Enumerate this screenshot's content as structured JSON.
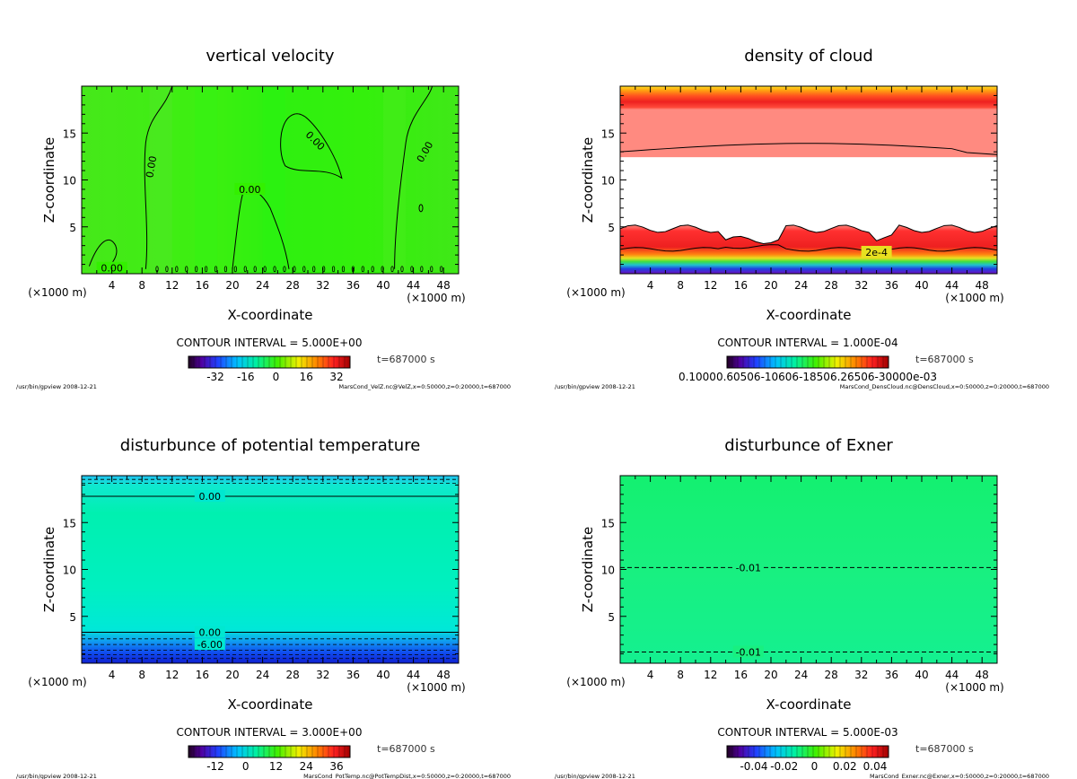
{
  "chart_data": [
    {
      "type": "heatmap",
      "id": "velz",
      "title": "vertical velocity",
      "xlabel": "X-coordinate",
      "ylabel": "Z-coordinate",
      "x_unit": "(×1000 m)",
      "xlim": [
        0,
        50
      ],
      "ylim": [
        0,
        20
      ],
      "x_ticks": [
        "4",
        "8",
        "12",
        "16",
        "20",
        "24",
        "28",
        "32",
        "36",
        "40",
        "44",
        "48"
      ],
      "y_ticks": [
        "5",
        "10",
        "15"
      ],
      "contour_interval": "CONTOUR INTERVAL = 5.000E+00",
      "time": "t=687000 s",
      "colorbar_ticks": [
        "-32",
        "-16",
        "0",
        "16",
        "32"
      ],
      "contour_labels": [
        "0.00",
        "0.00",
        "0.00",
        "0.00",
        "0.00"
      ],
      "footer_left": "/usr/bin/gpview  2008-12-21",
      "footer_right": "MarsCond_VelZ.nc@VelZ,x=0:50000,z=0:20000,t=687000",
      "colors": {
        "field": "#33f000"
      }
    },
    {
      "type": "heatmap",
      "id": "denscloud",
      "title": "density of cloud",
      "xlabel": "X-coordinate",
      "ylabel": "Z-coordinate",
      "x_unit": "(×1000 m)",
      "xlim": [
        0,
        50
      ],
      "ylim": [
        0,
        20
      ],
      "x_ticks": [
        "4",
        "8",
        "12",
        "16",
        "20",
        "24",
        "28",
        "32",
        "36",
        "40",
        "44",
        "48"
      ],
      "y_ticks": [
        "5",
        "10",
        "15"
      ],
      "contour_interval": "CONTOUR INTERVAL = 1.000E-04",
      "time": "t=687000 s",
      "colorbar_ticks": [
        "0.10000.60506-10606-18506.26506-30000e-03"
      ],
      "contour_labels": [
        "2e-4"
      ],
      "footer_left": "/usr/bin/gpview  2008-12-21",
      "footer_right": "MarsCond_DensCloud.nc@DensCloud,x=0:50000,z=0:20000,t=687000",
      "colors": {
        "field": "#ff3030"
      }
    },
    {
      "type": "heatmap",
      "id": "pottempdist",
      "title": "disturbunce of potential temperature",
      "xlabel": "X-coordinate",
      "ylabel": "Z-coordinate",
      "x_unit": "(×1000 m)",
      "xlim": [
        0,
        50
      ],
      "ylim": [
        0,
        20
      ],
      "x_ticks": [
        "4",
        "8",
        "12",
        "16",
        "20",
        "24",
        "28",
        "32",
        "36",
        "40",
        "44",
        "48"
      ],
      "y_ticks": [
        "5",
        "10",
        "15"
      ],
      "contour_interval": "CONTOUR INTERVAL = 3.000E+00",
      "time": "t=687000 s",
      "colorbar_ticks": [
        "-12",
        "0",
        "12",
        "24",
        "36"
      ],
      "contour_labels": [
        "0.00",
        "0.00",
        "-6.00"
      ],
      "footer_left": "/usr/bin/gpview  2008-12-21",
      "footer_right": "MarsCond_PotTemp.nc@PotTempDist,x=0:50000,z=0:20000,t=687000",
      "colors": {
        "field": "#00f0a0"
      }
    },
    {
      "type": "heatmap",
      "id": "exner",
      "title": "disturbunce of Exner",
      "xlabel": "X-coordinate",
      "ylabel": "Z-coordinate",
      "x_unit": "(×1000 m)",
      "xlim": [
        0,
        50
      ],
      "ylim": [
        0,
        20
      ],
      "x_ticks": [
        "4",
        "8",
        "12",
        "16",
        "20",
        "24",
        "28",
        "32",
        "36",
        "40",
        "44",
        "48"
      ],
      "y_ticks": [
        "5",
        "10",
        "15"
      ],
      "contour_interval": "CONTOUR INTERVAL = 5.000E-03",
      "time": "t=687000 s",
      "colorbar_ticks": [
        "-0.04",
        "-0.02",
        "0",
        "0.02",
        "0.04"
      ],
      "contour_labels": [
        "-0.01",
        "-0.01"
      ],
      "footer_left": "/usr/bin/gpview  2008-12-21",
      "footer_right": "MarsCond_Exner.nc@Exner,x=0:50000,z=0:20000,t=687000",
      "colors": {
        "field": "#18f080"
      }
    }
  ]
}
